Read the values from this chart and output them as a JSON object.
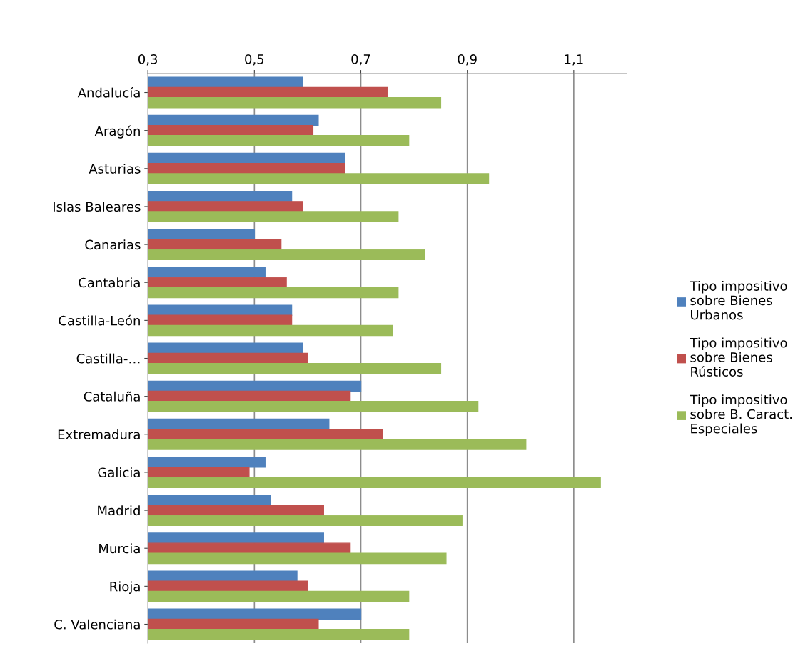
{
  "chart_data": {
    "type": "bar",
    "orientation": "horizontal",
    "categories": [
      "Andalucía",
      "Aragón",
      "Asturias",
      "Islas Baleares",
      "Canarias",
      "Cantabria",
      "Castilla-León",
      "Castilla-…",
      "Cataluña",
      "Extremadura",
      "Galicia",
      "Madrid",
      "Murcia",
      "Rioja",
      "C. Valenciana"
    ],
    "series": [
      {
        "name": "Tipo impositivo sobre Bienes Urbanos",
        "color": "#4f81bd",
        "values": [
          0.59,
          0.62,
          0.67,
          0.57,
          0.5,
          0.52,
          0.57,
          0.59,
          0.7,
          0.64,
          0.52,
          0.53,
          0.63,
          0.58,
          0.7
        ]
      },
      {
        "name": "Tipo impositivo sobre Bienes Rústicos",
        "color": "#c0504d",
        "values": [
          0.75,
          0.61,
          0.67,
          0.59,
          0.55,
          0.56,
          0.57,
          0.6,
          0.68,
          0.74,
          0.49,
          0.63,
          0.68,
          0.6,
          0.62
        ]
      },
      {
        "name": "Tipo impositivo sobre B. Caract. Especiales",
        "color": "#9bbb59",
        "values": [
          0.85,
          0.79,
          0.94,
          0.77,
          0.82,
          0.77,
          0.76,
          0.85,
          0.92,
          1.01,
          1.15,
          0.89,
          0.86,
          0.79,
          0.79
        ]
      }
    ],
    "xlim": [
      0.3,
      1.2
    ],
    "xticks": [
      {
        "value": 0.3,
        "label": "0,3"
      },
      {
        "value": 0.5,
        "label": "0,5"
      },
      {
        "value": 0.7,
        "label": "0,7"
      },
      {
        "value": 0.9,
        "label": "0,9"
      },
      {
        "value": 1.1,
        "label": "1,1"
      }
    ],
    "grid": "x",
    "legend": "right"
  }
}
